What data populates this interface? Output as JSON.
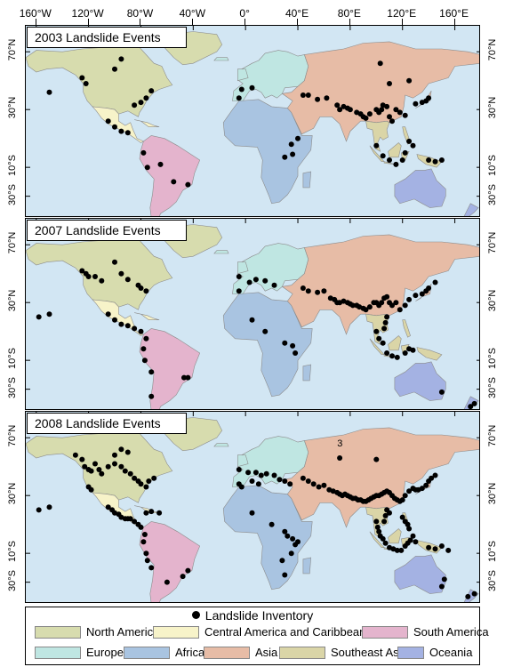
{
  "colors": {
    "ocean": "#d2e6f3",
    "north_america": "#d7dcae",
    "central_america_caribbean": "#f7f3c9",
    "south_america": "#e4b4cd",
    "europe": "#bfe6e2",
    "africa": "#a9c4e1",
    "asia": "#e7bca6",
    "southeast_asia": "#dad5a7",
    "oceania": "#a4b2e3",
    "dots": "#000000"
  },
  "longitude_labels": [
    "160°W",
    "120°W",
    "80°W",
    "40°W",
    "0°",
    "40°E",
    "80°E",
    "120°E",
    "160°E"
  ],
  "latitude_labels": [
    "70°N",
    "30°N",
    "10°S",
    "30°S"
  ],
  "panels": [
    {
      "title": "2003 Landslide Events",
      "annotation": ""
    },
    {
      "title": "2007 Landslide Events",
      "annotation": ""
    },
    {
      "title": "2008 Landslide Events",
      "annotation": "3"
    }
  ],
  "legend": {
    "title": "Landslide Inventory",
    "items": [
      {
        "label": "North America",
        "color": "#d7dcae"
      },
      {
        "label": "Central America and Caribbean",
        "color": "#f7f3c9"
      },
      {
        "label": "South America",
        "color": "#e4b4cd"
      },
      {
        "label": "Europe",
        "color": "#bfe6e2"
      },
      {
        "label": "Africa",
        "color": "#a9c4e1"
      },
      {
        "label": "Asia",
        "color": "#e7bca6"
      },
      {
        "label": "Southeast Asia",
        "color": "#dad5a7"
      },
      {
        "label": "Oceania",
        "color": "#a4b2e3"
      }
    ]
  },
  "events": {
    "2003": [
      [
        -150,
        42
      ],
      [
        -125,
        52
      ],
      [
        -122,
        48
      ],
      [
        -100,
        58
      ],
      [
        -95,
        65
      ],
      [
        -85,
        33
      ],
      [
        -80,
        35
      ],
      [
        -76,
        38
      ],
      [
        -72,
        43
      ],
      [
        -105,
        22
      ],
      [
        -100,
        18
      ],
      [
        -95,
        15
      ],
      [
        -90,
        14
      ],
      [
        -78,
        0
      ],
      [
        -75,
        -10
      ],
      [
        -44,
        -22
      ],
      [
        -55,
        -20
      ],
      [
        -65,
        -8
      ],
      [
        5,
        45
      ],
      [
        -3,
        44
      ],
      [
        -5,
        38
      ],
      [
        30,
        -3
      ],
      [
        36,
        -1
      ],
      [
        35,
        6
      ],
      [
        40,
        10
      ],
      [
        44,
        40
      ],
      [
        48,
        40
      ],
      [
        55,
        37
      ],
      [
        62,
        38
      ],
      [
        70,
        33
      ],
      [
        72,
        30
      ],
      [
        75,
        32
      ],
      [
        78,
        31
      ],
      [
        80,
        30
      ],
      [
        85,
        28
      ],
      [
        88,
        27
      ],
      [
        90,
        25
      ],
      [
        92,
        24
      ],
      [
        95,
        27
      ],
      [
        100,
        30
      ],
      [
        102,
        28
      ],
      [
        104,
        30
      ],
      [
        105,
        33
      ],
      [
        108,
        32
      ],
      [
        110,
        25
      ],
      [
        112,
        22
      ],
      [
        115,
        30
      ],
      [
        118,
        28
      ],
      [
        122,
        26
      ],
      [
        130,
        34
      ],
      [
        135,
        35
      ],
      [
        138,
        36
      ],
      [
        140,
        38
      ],
      [
        103,
        62
      ],
      [
        110,
        48
      ],
      [
        125,
        50
      ],
      [
        100,
        5
      ],
      [
        105,
        -2
      ],
      [
        110,
        -5
      ],
      [
        115,
        -8
      ],
      [
        120,
        -5
      ],
      [
        122,
        0
      ],
      [
        125,
        8
      ],
      [
        128,
        5
      ],
      [
        140,
        -5
      ],
      [
        145,
        -6
      ],
      [
        150,
        -5
      ]
    ],
    "2007": [
      [
        -150,
        22
      ],
      [
        -125,
        52
      ],
      [
        -122,
        50
      ],
      [
        -120,
        48
      ],
      [
        -115,
        48
      ],
      [
        -110,
        45
      ],
      [
        -100,
        58
      ],
      [
        -95,
        50
      ],
      [
        -90,
        46
      ],
      [
        -82,
        42
      ],
      [
        -80,
        40
      ],
      [
        -76,
        38
      ],
      [
        -105,
        22
      ],
      [
        -100,
        18
      ],
      [
        -95,
        15
      ],
      [
        -90,
        14
      ],
      [
        -85,
        12
      ],
      [
        -80,
        10
      ],
      [
        -76,
        5
      ],
      [
        -78,
        -2
      ],
      [
        -77,
        -10
      ],
      [
        -72,
        -18
      ],
      [
        -47,
        -22
      ],
      [
        -44,
        -22
      ],
      [
        -72,
        -35
      ],
      [
        -5,
        48
      ],
      [
        3,
        44
      ],
      [
        8,
        46
      ],
      [
        15,
        45
      ],
      [
        22,
        42
      ],
      [
        -5,
        38
      ],
      [
        5,
        18
      ],
      [
        15,
        10
      ],
      [
        30,
        2
      ],
      [
        36,
        0
      ],
      [
        38,
        -5
      ],
      [
        44,
        40
      ],
      [
        48,
        38
      ],
      [
        55,
        37
      ],
      [
        60,
        38
      ],
      [
        65,
        33
      ],
      [
        68,
        32
      ],
      [
        70,
        30
      ],
      [
        72,
        30
      ],
      [
        75,
        31
      ],
      [
        78,
        30
      ],
      [
        80,
        29
      ],
      [
        82,
        28
      ],
      [
        85,
        28
      ],
      [
        87,
        27
      ],
      [
        90,
        26
      ],
      [
        92,
        25
      ],
      [
        95,
        27
      ],
      [
        98,
        30
      ],
      [
        100,
        30
      ],
      [
        102,
        28
      ],
      [
        104,
        30
      ],
      [
        106,
        33
      ],
      [
        108,
        34
      ],
      [
        110,
        30
      ],
      [
        112,
        28
      ],
      [
        115,
        30
      ],
      [
        118,
        25
      ],
      [
        122,
        28
      ],
      [
        125,
        32
      ],
      [
        130,
        35
      ],
      [
        135,
        36
      ],
      [
        138,
        38
      ],
      [
        140,
        40
      ],
      [
        145,
        44
      ],
      [
        100,
        10
      ],
      [
        102,
        5
      ],
      [
        105,
        2
      ],
      [
        108,
        -5
      ],
      [
        112,
        -7
      ],
      [
        116,
        -8
      ],
      [
        122,
        -5
      ],
      [
        125,
        -2
      ],
      [
        128,
        -3
      ],
      [
        150,
        -32
      ],
      [
        172,
        -42
      ],
      [
        175,
        -40
      ],
      [
        -158,
        20
      ],
      [
        108,
        20
      ],
      [
        107,
        16
      ],
      [
        106,
        12
      ]
    ],
    "2008": [
      [
        -150,
        22
      ],
      [
        -130,
        58
      ],
      [
        -125,
        55
      ],
      [
        -123,
        50
      ],
      [
        -120,
        48
      ],
      [
        -118,
        47
      ],
      [
        -115,
        52
      ],
      [
        -112,
        48
      ],
      [
        -110,
        45
      ],
      [
        -105,
        50
      ],
      [
        -100,
        52
      ],
      [
        -95,
        50
      ],
      [
        -92,
        47
      ],
      [
        -88,
        45
      ],
      [
        -85,
        42
      ],
      [
        -82,
        40
      ],
      [
        -80,
        38
      ],
      [
        -76,
        36
      ],
      [
        -74,
        40
      ],
      [
        -70,
        42
      ],
      [
        -100,
        58
      ],
      [
        -95,
        62
      ],
      [
        -90,
        60
      ],
      [
        -120,
        36
      ],
      [
        -118,
        34
      ],
      [
        -105,
        22
      ],
      [
        -102,
        20
      ],
      [
        -100,
        18
      ],
      [
        -97,
        17
      ],
      [
        -95,
        15
      ],
      [
        -92,
        14
      ],
      [
        -90,
        14
      ],
      [
        -88,
        14
      ],
      [
        -85,
        12
      ],
      [
        -82,
        10
      ],
      [
        -80,
        8
      ],
      [
        -76,
        18
      ],
      [
        -72,
        19
      ],
      [
        -66,
        18
      ],
      [
        -77,
        3
      ],
      [
        -78,
        -2
      ],
      [
        -76,
        -10
      ],
      [
        -75,
        -15
      ],
      [
        -72,
        -20
      ],
      [
        -44,
        -22
      ],
      [
        -48,
        -26
      ],
      [
        -60,
        -30
      ],
      [
        -5,
        48
      ],
      [
        2,
        46
      ],
      [
        8,
        46
      ],
      [
        12,
        44
      ],
      [
        16,
        45
      ],
      [
        22,
        44
      ],
      [
        26,
        41
      ],
      [
        30,
        40
      ],
      [
        34,
        38
      ],
      [
        -5,
        38
      ],
      [
        -3,
        36
      ],
      [
        5,
        40
      ],
      [
        10,
        38
      ],
      [
        5,
        18
      ],
      [
        20,
        10
      ],
      [
        30,
        5
      ],
      [
        32,
        2
      ],
      [
        36,
        0
      ],
      [
        38,
        -4
      ],
      [
        40,
        -2
      ],
      [
        28,
        -15
      ],
      [
        30,
        -25
      ],
      [
        35,
        -10
      ],
      [
        44,
        42
      ],
      [
        48,
        40
      ],
      [
        52,
        38
      ],
      [
        56,
        36
      ],
      [
        60,
        37
      ],
      [
        64,
        34
      ],
      [
        67,
        33
      ],
      [
        70,
        32
      ],
      [
        72,
        31
      ],
      [
        74,
        30
      ],
      [
        76,
        31
      ],
      [
        78,
        30
      ],
      [
        80,
        29
      ],
      [
        82,
        28
      ],
      [
        84,
        28
      ],
      [
        86,
        27
      ],
      [
        88,
        27
      ],
      [
        90,
        26
      ],
      [
        92,
        26
      ],
      [
        94,
        27
      ],
      [
        96,
        28
      ],
      [
        98,
        29
      ],
      [
        100,
        30
      ],
      [
        102,
        30
      ],
      [
        104,
        31
      ],
      [
        106,
        32
      ],
      [
        108,
        33
      ],
      [
        110,
        32
      ],
      [
        112,
        30
      ],
      [
        114,
        28
      ],
      [
        116,
        27
      ],
      [
        118,
        26
      ],
      [
        120,
        27
      ],
      [
        122,
        30
      ],
      [
        125,
        33
      ],
      [
        128,
        35
      ],
      [
        130,
        34
      ],
      [
        132,
        34
      ],
      [
        135,
        35
      ],
      [
        138,
        37
      ],
      [
        140,
        40
      ],
      [
        142,
        42
      ],
      [
        145,
        44
      ],
      [
        100,
        12
      ],
      [
        101,
        8
      ],
      [
        102,
        5
      ],
      [
        103,
        2
      ],
      [
        105,
        0
      ],
      [
        107,
        -3
      ],
      [
        110,
        -6
      ],
      [
        113,
        -7
      ],
      [
        116,
        -8
      ],
      [
        119,
        -8
      ],
      [
        122,
        -5
      ],
      [
        124,
        -3
      ],
      [
        126,
        -1
      ],
      [
        128,
        2
      ],
      [
        130,
        -2
      ],
      [
        140,
        -6
      ],
      [
        145,
        -7
      ],
      [
        150,
        -5
      ],
      [
        155,
        -8
      ],
      [
        170,
        -40
      ],
      [
        175,
        -38
      ],
      [
        152,
        -28
      ],
      [
        150,
        -33
      ],
      [
        -158,
        20
      ],
      [
        108,
        20
      ],
      [
        107,
        16
      ],
      [
        106,
        12
      ],
      [
        110,
        18
      ],
      [
        120,
        15
      ],
      [
        122,
        12
      ],
      [
        124,
        10
      ],
      [
        125,
        7
      ],
      [
        72,
        56
      ],
      [
        100,
        55
      ]
    ]
  }
}
